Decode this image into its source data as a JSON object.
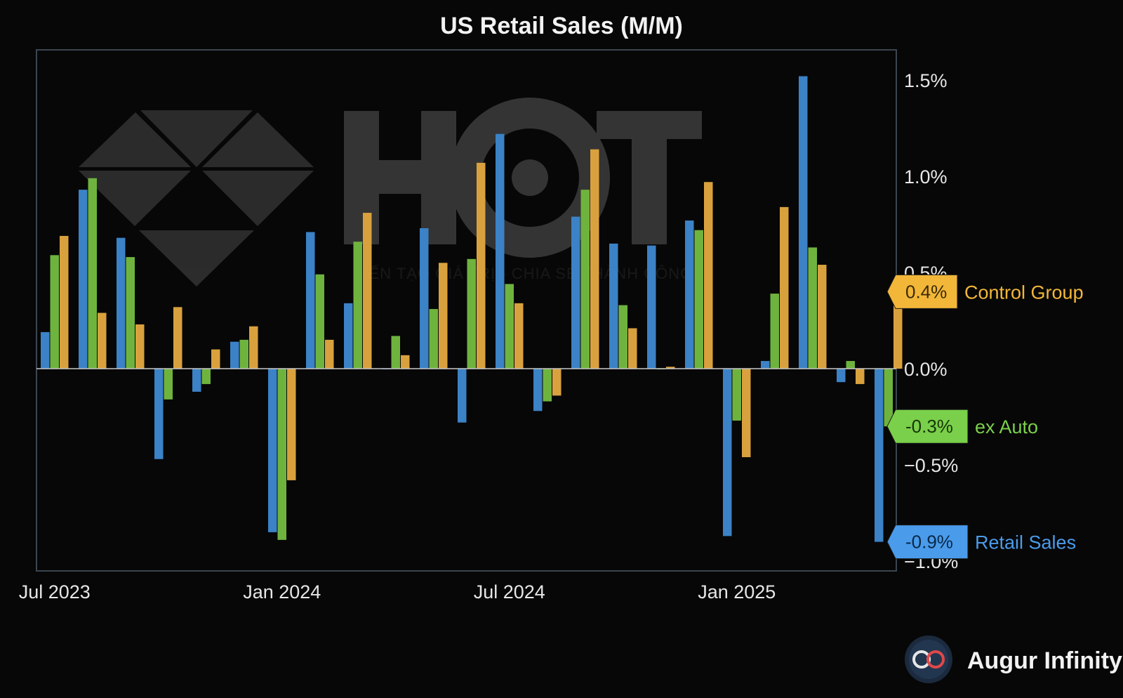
{
  "chart_data": {
    "type": "bar",
    "title": "US Retail Sales (M/M)",
    "ylim": [
      -1.05,
      1.67
    ],
    "yticks": [
      {
        "value": 1.5,
        "label": "1.5%"
      },
      {
        "value": 1.0,
        "label": "1.0%"
      },
      {
        "value": 0.5,
        "label": "0.5%"
      },
      {
        "value": 0.0,
        "label": "0.0%"
      },
      {
        "value": -0.5,
        "label": "−0.5%"
      },
      {
        "value": -1.0,
        "label": "−1.0%"
      }
    ],
    "xticks": [
      {
        "index": 0,
        "label": "Jul 2023"
      },
      {
        "index": 6,
        "label": "Jan 2024"
      },
      {
        "index": 12,
        "label": "Jul 2024"
      },
      {
        "index": 18,
        "label": "Jan 2025"
      }
    ],
    "categories": [
      "Jul 2023",
      "Aug 2023",
      "Sep 2023",
      "Oct 2023",
      "Nov 2023",
      "Dec 2023",
      "Jan 2024",
      "Feb 2024",
      "Mar 2024",
      "Apr 2024",
      "May 2024",
      "Jun 2024",
      "Jul 2024",
      "Aug 2024",
      "Sep 2024",
      "Oct 2024",
      "Nov 2024",
      "Dec 2024",
      "Jan 2025",
      "Feb 2025",
      "Mar 2025",
      "Apr 2025",
      "May 2025"
    ],
    "grid": false,
    "series": [
      {
        "name": "Retail Sales",
        "color": "#3b82c6",
        "values": [
          0.19,
          0.93,
          0.68,
          -0.47,
          -0.12,
          0.14,
          -0.85,
          0.71,
          0.34,
          0.0,
          0.73,
          -0.28,
          1.22,
          -0.22,
          0.79,
          0.65,
          0.64,
          0.77,
          -0.87,
          0.04,
          1.52,
          -0.07,
          -0.9
        ]
      },
      {
        "name": "ex Auto",
        "color": "#6fb33f",
        "values": [
          0.59,
          0.99,
          0.58,
          -0.16,
          -0.08,
          0.15,
          -0.89,
          0.49,
          0.66,
          0.17,
          0.31,
          0.57,
          0.44,
          -0.17,
          0.93,
          0.33,
          0.0,
          0.72,
          -0.27,
          0.39,
          0.63,
          0.04,
          -0.3
        ]
      },
      {
        "name": "Control Group",
        "color": "#d9a13e",
        "values": [
          0.69,
          0.29,
          0.23,
          0.32,
          0.1,
          0.22,
          -0.58,
          0.15,
          0.81,
          0.07,
          0.55,
          1.07,
          0.34,
          -0.14,
          1.14,
          0.21,
          0.01,
          0.97,
          -0.46,
          0.84,
          0.54,
          -0.08,
          0.4
        ]
      }
    ],
    "last_value_tags": [
      {
        "series": "Control Group",
        "text": "0.4%",
        "label": "Control Group",
        "bg": "#f2b739",
        "fg": "#3a2a05",
        "label_color": "#f2b739"
      },
      {
        "series": "ex Auto",
        "text": "-0.3%",
        "label": "ex Auto",
        "bg": "#7ad04a",
        "fg": "#173608",
        "label_color": "#7ad04a"
      },
      {
        "series": "Retail Sales",
        "text": "-0.9%",
        "label": "Retail Sales",
        "bg": "#4a9bea",
        "fg": "#082848",
        "label_color": "#4a9bea"
      }
    ]
  },
  "watermark": {
    "logo_text": "HCT",
    "tagline": "KIẾN TẠO GIÁ TRỊ - CHIA SẺ THÀNH CÔNG"
  },
  "brand": {
    "name": "Augur Infinity",
    "icon": "infinity-logo-icon"
  }
}
